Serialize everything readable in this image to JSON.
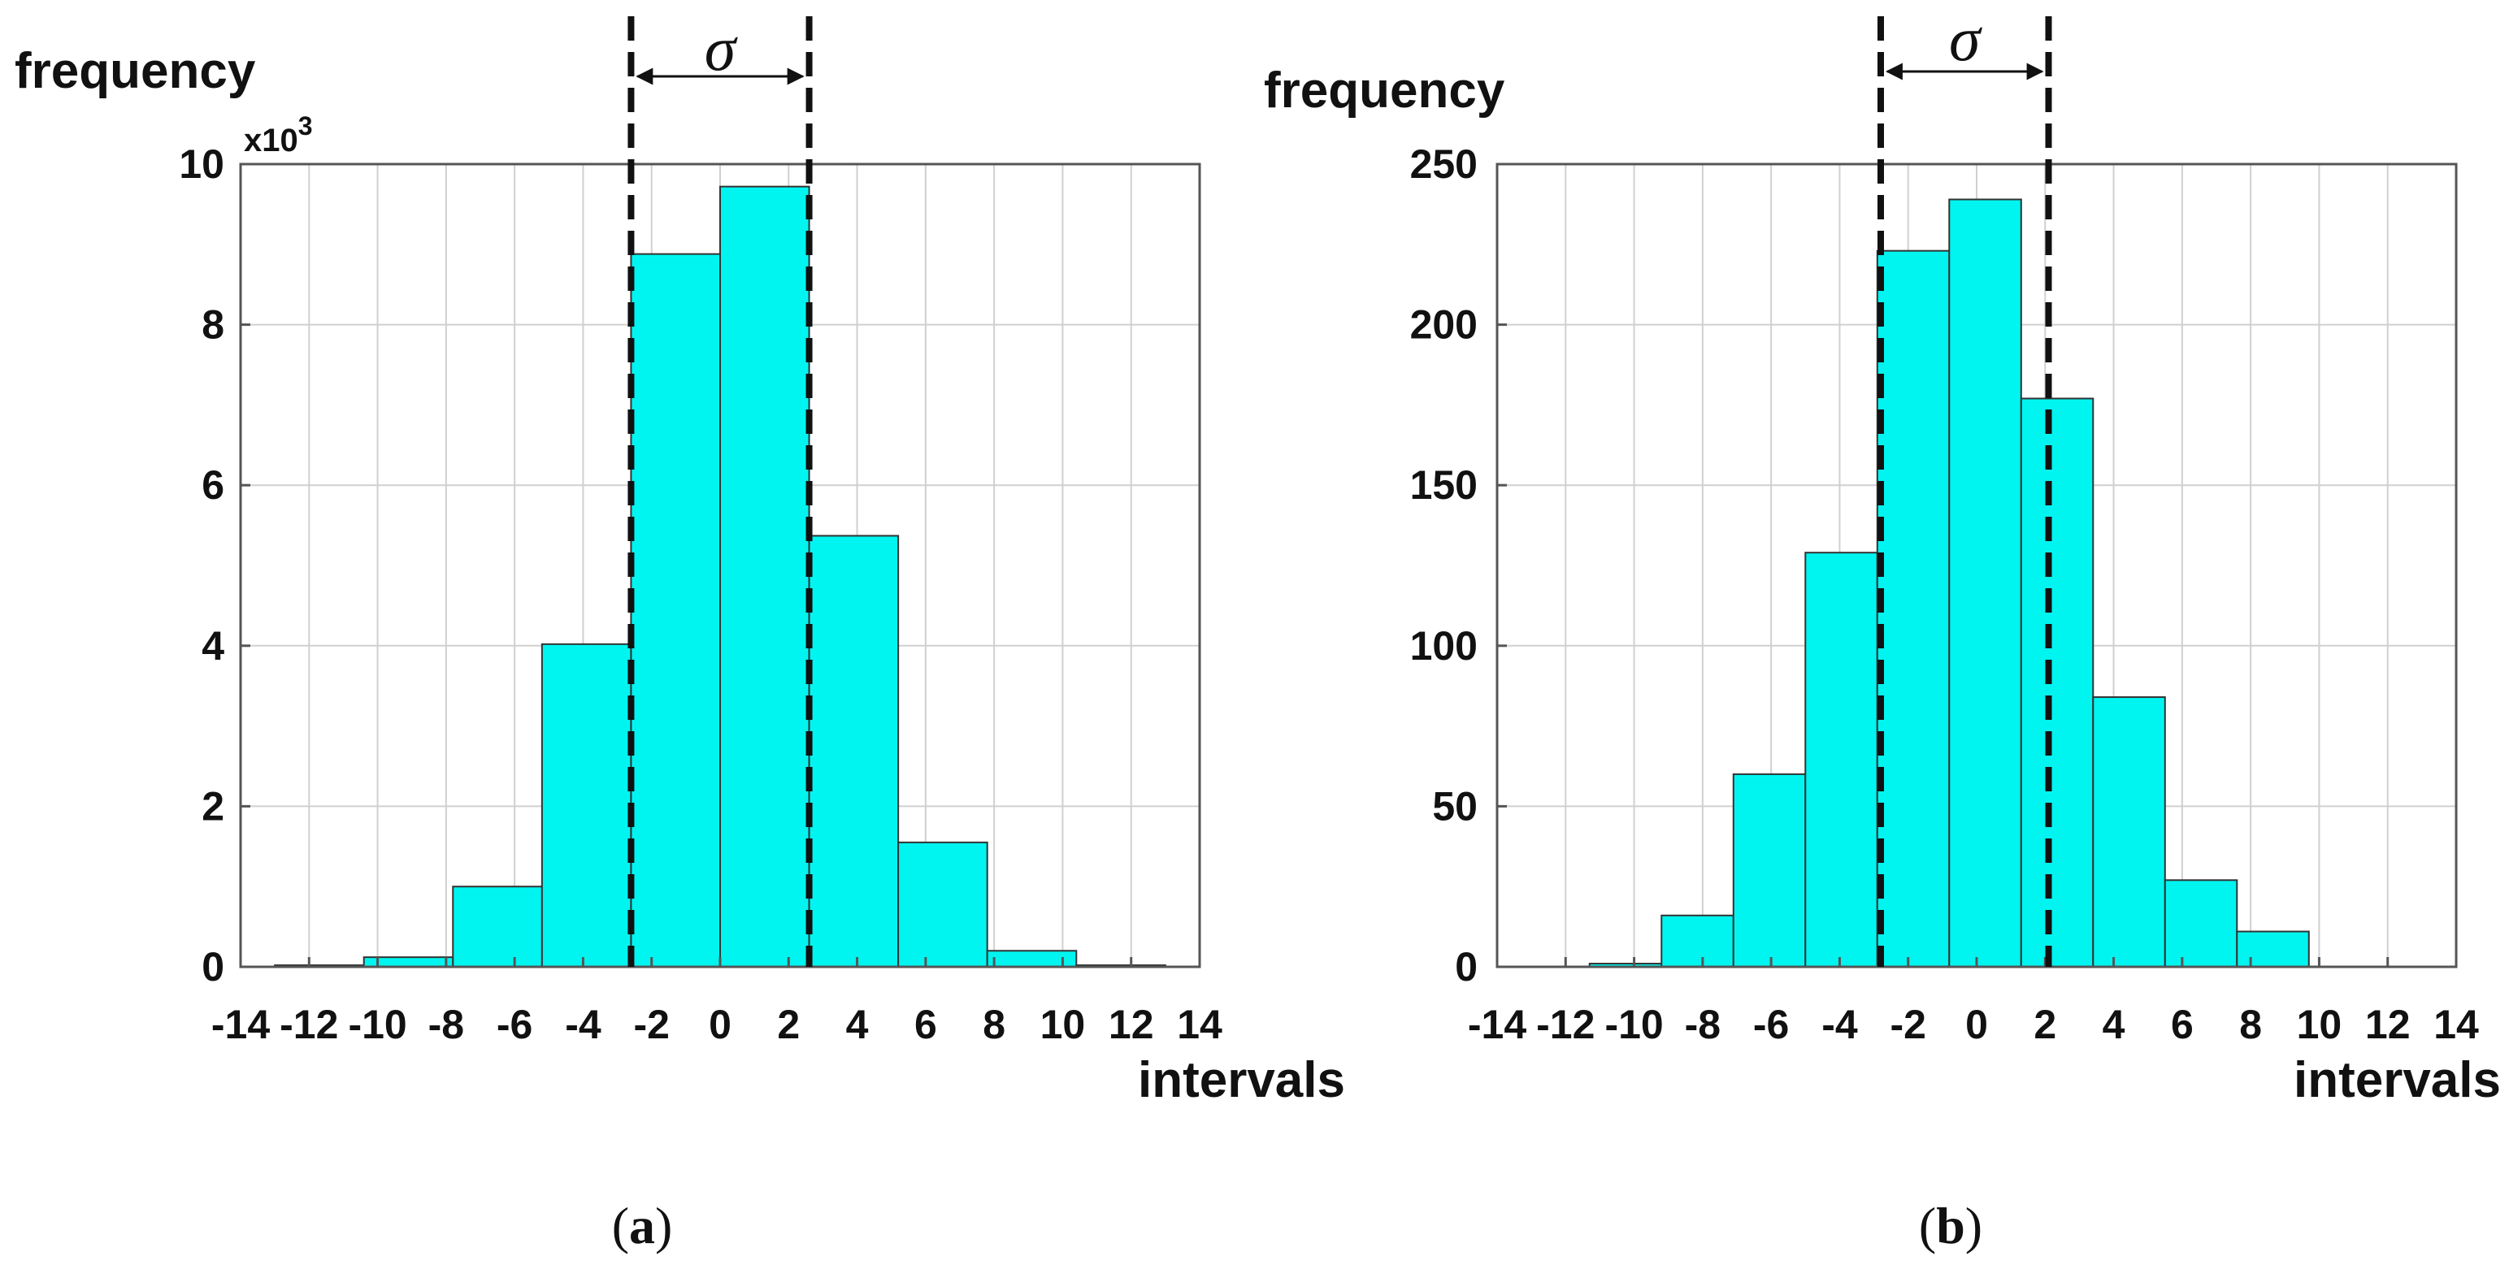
{
  "colors": {
    "bar_fill": "#00f5f0",
    "bar_stroke": "#333333",
    "grid": "#d0d0d0",
    "axis": "#555555",
    "marker_line": "#111111",
    "text": "#111111"
  },
  "chart_data": [
    {
      "type": "bar",
      "panel_label": "a",
      "caption_open": "(",
      "caption_close": ")",
      "ylabel": "frequency",
      "xlabel": "intervals",
      "multiplier_base": "x10",
      "multiplier_exp": "3",
      "sigma_symbol": "σ",
      "xlim": [
        -14,
        14
      ],
      "ylim": [
        0,
        10
      ],
      "x_ticks": [
        -14,
        -12,
        -10,
        -8,
        -6,
        -4,
        -2,
        0,
        2,
        4,
        6,
        8,
        10,
        12,
        14
      ],
      "x_tick_labels": [
        "-14",
        "-12",
        "-10",
        "-8",
        "-6",
        "-4",
        "-2",
        "0",
        "2",
        "4",
        "6",
        "8",
        "10",
        "12",
        "14"
      ],
      "y_ticks": [
        0,
        2,
        4,
        6,
        8,
        10
      ],
      "y_tick_labels": [
        "0",
        "2",
        "4",
        "6",
        "8",
        "10"
      ],
      "bin_width": 2.6,
      "bin_centers": [
        -11.7,
        -9.1,
        -6.5,
        -3.9,
        -1.3,
        1.3,
        3.9,
        6.5,
        9.1,
        11.7
      ],
      "values": [
        0.02,
        0.12,
        1.0,
        4.02,
        8.88,
        9.72,
        5.37,
        1.55,
        0.2,
        0.02
      ],
      "sigma_lines": [
        -2.6,
        2.6
      ],
      "grid": true
    },
    {
      "type": "bar",
      "panel_label": "b",
      "caption_open": "(",
      "caption_close": ")",
      "ylabel": "frequency",
      "xlabel": "intervals",
      "sigma_symbol": "σ",
      "xlim": [
        -14,
        14
      ],
      "ylim": [
        0,
        250
      ],
      "x_ticks": [
        -14,
        -12,
        -10,
        -8,
        -6,
        -4,
        -2,
        0,
        2,
        4,
        6,
        8,
        10,
        12,
        14
      ],
      "x_tick_labels": [
        "-14",
        "-12",
        "-10",
        "-8",
        "-6",
        "-4",
        "-2",
        "0",
        "2",
        "4",
        "6",
        "8",
        "10",
        "12",
        "14"
      ],
      "y_ticks": [
        0,
        50,
        100,
        150,
        200,
        250
      ],
      "y_tick_labels": [
        "0",
        "50",
        "100",
        "150",
        "200",
        "250"
      ],
      "bin_width": 2.1,
      "bin_centers": [
        -10.25,
        -8.15,
        -6.05,
        -3.95,
        -1.85,
        0.25,
        2.35,
        4.45,
        6.55,
        8.65
      ],
      "values": [
        1,
        16,
        60,
        129,
        223,
        239,
        177,
        84,
        27,
        11
      ],
      "sigma_lines": [
        -2.8,
        2.1
      ],
      "grid": true
    }
  ]
}
